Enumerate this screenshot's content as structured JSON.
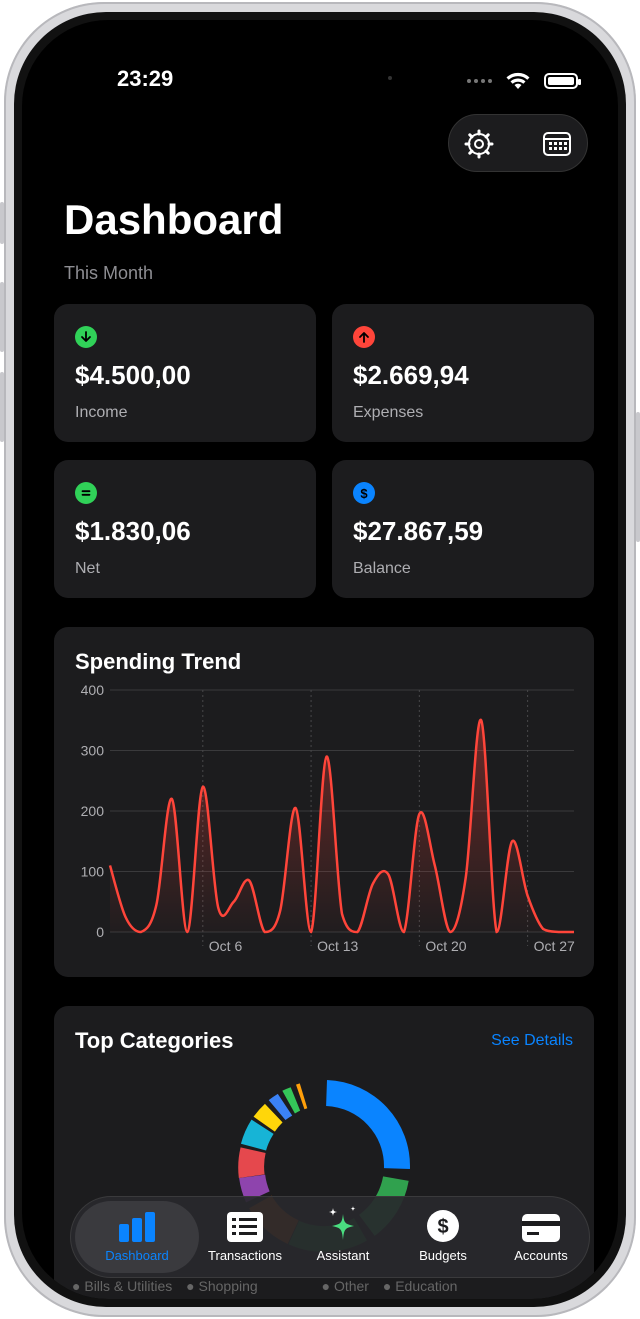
{
  "status": {
    "time": "23:29"
  },
  "header": {
    "title": "Dashboard",
    "subtitle": "This Month"
  },
  "stats": [
    {
      "value": "$4.500,00",
      "label": "Income",
      "icon": "arrow-down-icon",
      "color": "#30d158"
    },
    {
      "value": "$2.669,94",
      "label": "Expenses",
      "icon": "arrow-up-icon",
      "color": "#ff453a"
    },
    {
      "value": "$1.830,06",
      "label": "Net",
      "icon": "equals-icon",
      "color": "#30d158"
    },
    {
      "value": "$27.867,59",
      "label": "Balance",
      "icon": "dollar-icon",
      "color": "#0a84ff"
    }
  ],
  "trend": {
    "title": "Spending Trend"
  },
  "chart_data": {
    "type": "area",
    "y_ticks": [
      "400",
      "300",
      "200",
      "100",
      "0"
    ],
    "x_ticks": [
      "Oct 6",
      "Oct 13",
      "Oct 20",
      "Oct 27"
    ],
    "ylim": [
      0,
      400
    ],
    "grid": true,
    "x": [
      "Sep 30",
      "Oct 1",
      "Oct 2",
      "Oct 3",
      "Oct 4",
      "Oct 5",
      "Oct 6",
      "Oct 7",
      "Oct 8",
      "Oct 9",
      "Oct 10",
      "Oct 11",
      "Oct 12",
      "Oct 13",
      "Oct 14",
      "Oct 15",
      "Oct 16",
      "Oct 17",
      "Oct 18",
      "Oct 19",
      "Oct 20",
      "Oct 21",
      "Oct 22",
      "Oct 23",
      "Oct 24",
      "Oct 25",
      "Oct 26",
      "Oct 27",
      "Oct 28",
      "Oct 29",
      "Oct 30"
    ],
    "series": [
      {
        "color": "#ff453a",
        "values": [
          110,
          25,
          0,
          45,
          220,
          0,
          240,
          40,
          50,
          85,
          0,
          35,
          205,
          0,
          290,
          30,
          0,
          80,
          95,
          0,
          195,
          110,
          0,
          90,
          350,
          0,
          150,
          60,
          5,
          0,
          0
        ]
      }
    ]
  },
  "categories": {
    "title": "Top Categories",
    "see_details": "See Details",
    "legend": [
      "Bills & Utilities",
      "Shopping",
      "Other",
      "Education"
    ]
  },
  "tabs": [
    {
      "label": "Dashboard",
      "icon": "chart-bar-icon"
    },
    {
      "label": "Transactions",
      "icon": "list-icon"
    },
    {
      "label": "Assistant",
      "icon": "sparkles-icon"
    },
    {
      "label": "Budgets",
      "icon": "dollar-circle-icon"
    },
    {
      "label": "Accounts",
      "icon": "credit-card-icon"
    }
  ],
  "colors": {
    "accent": "#0a84ff",
    "income": "#30d158",
    "expense": "#ff453a",
    "card": "#1c1c1e"
  }
}
